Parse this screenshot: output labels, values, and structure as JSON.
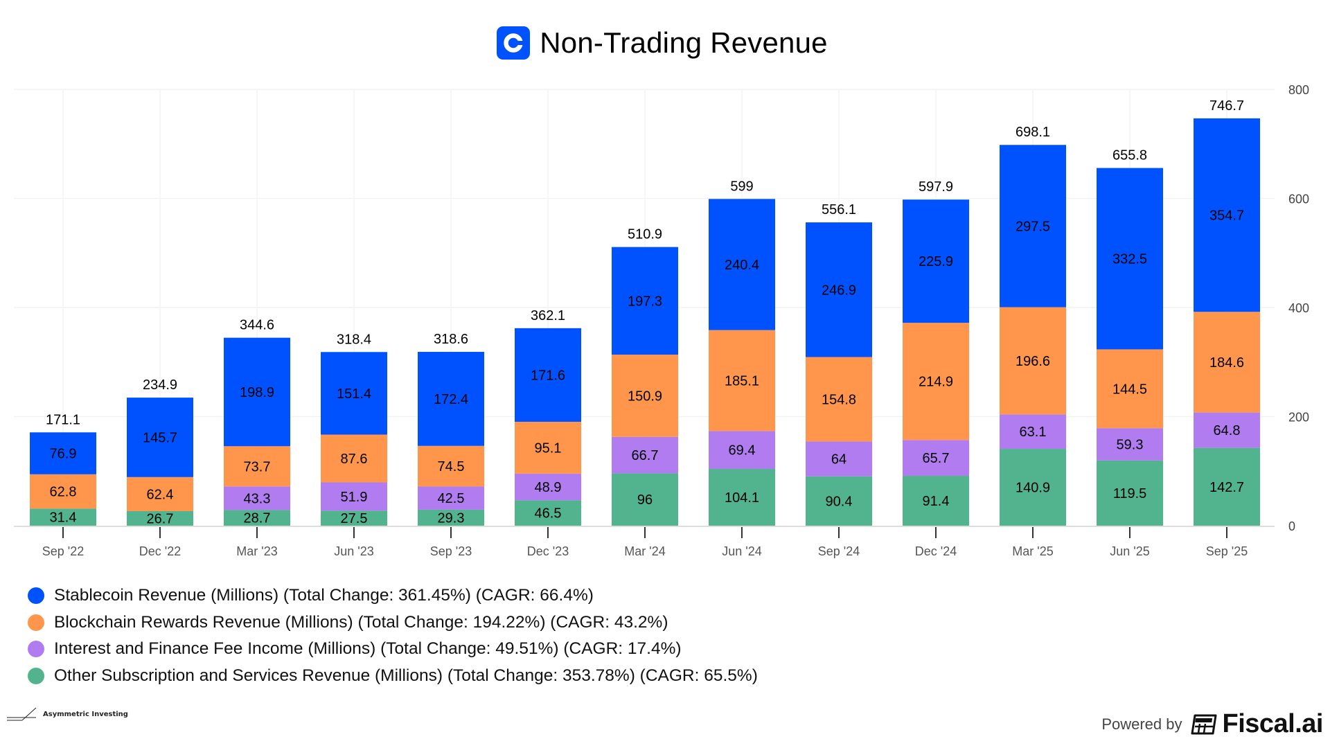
{
  "header": {
    "title": "Non-Trading Revenue",
    "logo_letter": "C",
    "logo_color": "#0052ff"
  },
  "chart_data": {
    "type": "bar",
    "stacked": true,
    "title": "Non-Trading Revenue",
    "xlabel": "",
    "ylabel": "",
    "ylim": [
      0,
      800
    ],
    "yticks": [
      0,
      200,
      400,
      600,
      800
    ],
    "yaxis_side": "right",
    "grid": true,
    "legend_position": "bottom-left",
    "categories": [
      "Sep '22",
      "Dec '22",
      "Mar '23",
      "Jun '23",
      "Sep '23",
      "Dec '23",
      "Mar '24",
      "Jun '24",
      "Sep '24",
      "Dec '24",
      "Mar '25",
      "Jun '25",
      "Sep '25"
    ],
    "totals": [
      "171.1",
      "234.9",
      "344.6",
      "318.4",
      "318.6",
      "362.1",
      "510.9",
      "599",
      "556.1",
      "597.9",
      "698.1",
      "655.8",
      "746.7"
    ],
    "series": [
      {
        "name": "Other Subscription and Services Revenue (Millions)",
        "legend_label": "Other Subscription and Services Revenue (Millions) (Total Change: 353.78%) (CAGR: 65.5%)",
        "color": "#52b38f",
        "values": [
          31.4,
          26.7,
          28.7,
          27.5,
          29.3,
          46.5,
          96,
          104.1,
          90.4,
          91.4,
          140.9,
          119.5,
          142.7
        ]
      },
      {
        "name": "Interest and Finance Fee Income (Millions)",
        "legend_label": "Interest and Finance Fee Income (Millions) (Total Change: 49.51%) (CAGR: 17.4%)",
        "color": "#b07cf0",
        "values": [
          null,
          null,
          43.3,
          51.9,
          42.5,
          48.9,
          66.7,
          69.4,
          64,
          65.7,
          63.1,
          59.3,
          64.8
        ]
      },
      {
        "name": "Blockchain Rewards Revenue (Millions)",
        "legend_label": "Blockchain Rewards Revenue (Millions) (Total Change: 194.22%) (CAGR: 43.2%)",
        "color": "#ff964c",
        "values": [
          62.8,
          62.4,
          73.7,
          87.6,
          74.5,
          95.1,
          150.9,
          185.1,
          154.8,
          214.9,
          196.6,
          144.5,
          184.6
        ]
      },
      {
        "name": "Stablecoin Revenue (Millions)",
        "legend_label": "Stablecoin Revenue (Millions) (Total Change: 361.45%) (CAGR: 66.4%)",
        "color": "#0052ff",
        "values": [
          76.9,
          145.7,
          198.9,
          151.4,
          172.4,
          171.6,
          197.3,
          240.4,
          246.9,
          225.9,
          297.5,
          332.5,
          354.7
        ]
      }
    ]
  },
  "legend": [
    {
      "label": "Stablecoin Revenue (Millions) (Total Change: 361.45%) (CAGR: 66.4%)",
      "color": "#0052ff"
    },
    {
      "label": "Blockchain Rewards Revenue (Millions) (Total Change: 194.22%) (CAGR: 43.2%)",
      "color": "#ff964c"
    },
    {
      "label": "Interest and Finance Fee Income (Millions) (Total Change: 49.51%) (CAGR: 17.4%)",
      "color": "#b07cf0"
    },
    {
      "label": "Other Subscription and Services Revenue (Millions) (Total Change: 353.78%) (CAGR: 65.5%)",
      "color": "#52b38f"
    }
  ],
  "footer": {
    "source_label": "Asymmetric Investing",
    "powered_by": "Powered by",
    "brand": "Fiscal.ai"
  }
}
